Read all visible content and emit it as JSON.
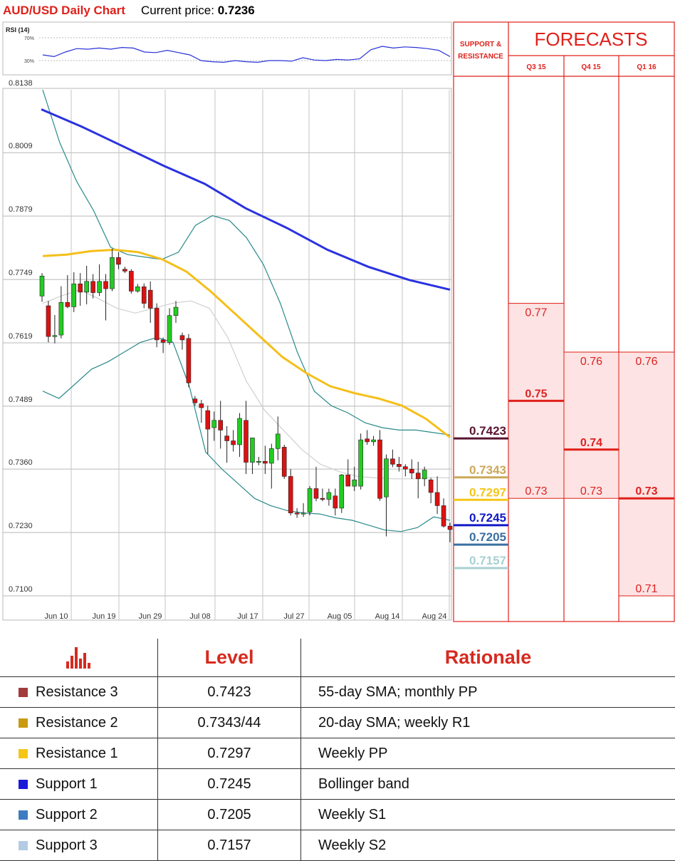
{
  "header": {
    "title": "AUD/USD Daily Chart",
    "price_label": "Current price:",
    "price_value": "0.7236"
  },
  "rsi": {
    "label": "RSI (14)",
    "level_high": "70%",
    "level_low": "30%"
  },
  "right_panel": {
    "sr_title_line1": "SUPPORT &",
    "sr_title_line2": "RESISTANCE",
    "forecasts_title": "FORECASTS",
    "quarters": [
      "Q3 15",
      "Q4 15",
      "Q1 16"
    ]
  },
  "colors": {
    "accent_red": "#e0201a",
    "bull": "#22cc22",
    "bear": "#dd1111",
    "sma200": "#2a32e0",
    "sma55": "#f5bf1a",
    "bollinger": "#2a8a8a",
    "sma20": "#d0d0d0",
    "forecast_fill": "#fde3e3",
    "forecast_line": "#e0201a"
  },
  "chart_data": {
    "type": "candlestick",
    "title": "AUD/USD Daily Chart",
    "ylim": [
      0.71,
      0.8138
    ],
    "y_ticks": [
      "0.8138",
      "0.8009",
      "0.7879",
      "0.7749",
      "0.7619",
      "0.7489",
      "0.7360",
      "0.7230",
      "0.7100"
    ],
    "x_ticks": [
      "Jun 10",
      "Jun 19",
      "Jun 29",
      "Jul 08",
      "Jul 17",
      "Jul 27",
      "Aug 05",
      "Aug 14",
      "Aug 24"
    ],
    "candles": [
      [
        0.7715,
        0.7762,
        0.7703,
        0.7756
      ],
      [
        0.7695,
        0.7705,
        0.762,
        0.7632
      ],
      [
        0.7632,
        0.7676,
        0.7618,
        0.7634
      ],
      [
        0.7635,
        0.7735,
        0.7628,
        0.7702
      ],
      [
        0.7702,
        0.7758,
        0.769,
        0.7693
      ],
      [
        0.7693,
        0.7764,
        0.7682,
        0.774
      ],
      [
        0.774,
        0.7762,
        0.7695,
        0.7723
      ],
      [
        0.7723,
        0.7777,
        0.7698,
        0.7745
      ],
      [
        0.7745,
        0.776,
        0.771,
        0.7722
      ],
      [
        0.7722,
        0.778,
        0.7715,
        0.7745
      ],
      [
        0.7745,
        0.776,
        0.7665,
        0.773
      ],
      [
        0.773,
        0.7812,
        0.7725,
        0.7794
      ],
      [
        0.7794,
        0.7805,
        0.777,
        0.778
      ],
      [
        0.777,
        0.7775,
        0.7762,
        0.7766
      ],
      [
        0.7766,
        0.777,
        0.772,
        0.7725
      ],
      [
        0.7725,
        0.774,
        0.7722,
        0.7734
      ],
      [
        0.7734,
        0.7741,
        0.769,
        0.77
      ],
      [
        0.7727,
        0.7745,
        0.766,
        0.769
      ],
      [
        0.769,
        0.77,
        0.761,
        0.7625
      ],
      [
        0.7625,
        0.763,
        0.7598,
        0.762
      ],
      [
        0.762,
        0.769,
        0.7615,
        0.7675
      ],
      [
        0.7675,
        0.7705,
        0.766,
        0.7692
      ],
      [
        0.7634,
        0.764,
        0.7605,
        0.7625
      ],
      [
        0.7628,
        0.7637,
        0.7528,
        0.7537
      ],
      [
        0.7504,
        0.751,
        0.749,
        0.7496
      ],
      [
        0.7494,
        0.7502,
        0.7455,
        0.7486
      ],
      [
        0.748,
        0.749,
        0.7391,
        0.7442
      ],
      [
        0.7445,
        0.7478,
        0.7418,
        0.746
      ],
      [
        0.746,
        0.75,
        0.7402,
        0.744
      ],
      [
        0.7428,
        0.7448,
        0.7373,
        0.7418
      ],
      [
        0.7418,
        0.744,
        0.7396,
        0.741
      ],
      [
        0.741,
        0.7475,
        0.7385,
        0.7464
      ],
      [
        0.746,
        0.75,
        0.735,
        0.7374
      ],
      [
        0.7374,
        0.742,
        0.735,
        0.7424
      ],
      [
        0.7375,
        0.7385,
        0.7368,
        0.7376
      ],
      [
        0.7376,
        0.7408,
        0.735,
        0.7372
      ],
      [
        0.7372,
        0.7412,
        0.732,
        0.7402
      ],
      [
        0.7402,
        0.7468,
        0.7378,
        0.7432
      ],
      [
        0.7405,
        0.741,
        0.734,
        0.7345
      ],
      [
        0.7345,
        0.736,
        0.7265,
        0.727
      ],
      [
        0.727,
        0.728,
        0.726,
        0.7268
      ],
      [
        0.7268,
        0.729,
        0.7262,
        0.727
      ],
      [
        0.7272,
        0.7325,
        0.7265,
        0.732
      ],
      [
        0.732,
        0.7365,
        0.7294,
        0.73
      ],
      [
        0.73,
        0.732,
        0.7294,
        0.7298
      ],
      [
        0.7298,
        0.732,
        0.7285,
        0.7312
      ],
      [
        0.7305,
        0.732,
        0.7265,
        0.728
      ],
      [
        0.728,
        0.735,
        0.727,
        0.7348
      ],
      [
        0.7348,
        0.738,
        0.7325,
        0.7325
      ],
      [
        0.7325,
        0.7365,
        0.7315,
        0.7338
      ],
      [
        0.7325,
        0.7433,
        0.7318,
        0.742
      ],
      [
        0.7422,
        0.744,
        0.741,
        0.7416
      ],
      [
        0.7416,
        0.7428,
        0.7408,
        0.742
      ],
      [
        0.742,
        0.744,
        0.7295,
        0.73
      ],
      [
        0.7303,
        0.739,
        0.7222,
        0.7381
      ],
      [
        0.7381,
        0.74,
        0.7364,
        0.737
      ],
      [
        0.737,
        0.7385,
        0.7355,
        0.7365
      ],
      [
        0.7365,
        0.737,
        0.7345,
        0.736
      ],
      [
        0.736,
        0.738,
        0.734,
        0.7352
      ],
      [
        0.7352,
        0.7375,
        0.73,
        0.734
      ],
      [
        0.734,
        0.7365,
        0.7325,
        0.7358
      ],
      [
        0.7338,
        0.7342,
        0.729,
        0.7312
      ],
      [
        0.7312,
        0.7345,
        0.7268,
        0.7285
      ],
      [
        0.7285,
        0.73,
        0.724,
        0.7243
      ],
      [
        0.7243,
        0.725,
        0.721,
        0.7236
      ]
    ],
    "sma_200": [
      0.8098,
      0.8062,
      0.8022,
      0.7982,
      0.7945,
      0.7895,
      0.7855,
      0.781,
      0.7775,
      0.7748,
      0.7728
    ],
    "sma_55": [
      0.7797,
      0.78,
      0.7807,
      0.781,
      0.7805,
      0.779,
      0.7765,
      0.7725,
      0.768,
      0.7635,
      0.759,
      0.7557,
      0.753,
      0.7516,
      0.7505,
      0.749,
      0.7463,
      0.7425
    ],
    "bollinger_upper": [
      0.8138,
      0.803,
      0.795,
      0.789,
      0.7815,
      0.78,
      0.7795,
      0.779,
      0.7805,
      0.786,
      0.788,
      0.787,
      0.7835,
      0.778,
      0.77,
      0.76,
      0.752,
      0.749,
      0.7475,
      0.7455,
      0.7445,
      0.744,
      0.744,
      0.7435,
      0.743
    ],
    "bollinger_lower": [
      0.752,
      0.7505,
      0.7535,
      0.7565,
      0.758,
      0.76,
      0.762,
      0.763,
      0.762,
      0.753,
      0.7395,
      0.736,
      0.733,
      0.73,
      0.7285,
      0.7275,
      0.727,
      0.7268,
      0.726,
      0.7255,
      0.7245,
      0.7235,
      0.7232,
      0.724,
      0.7262,
      0.7255
    ],
    "sma_20": [
      0.77,
      0.7715,
      0.7728,
      0.771,
      0.769,
      0.768,
      0.769,
      0.77,
      0.7705,
      0.769,
      0.763,
      0.754,
      0.748,
      0.744,
      0.74,
      0.737,
      0.7355,
      0.7345,
      0.7342,
      0.734,
      0.734,
      0.7343,
      0.7342
    ],
    "rsi": [
      40,
      37,
      45,
      51,
      50,
      52,
      50,
      53,
      52,
      45,
      44,
      48,
      44,
      40,
      30,
      28,
      27,
      30,
      28,
      27,
      30,
      30,
      29,
      35,
      31,
      30,
      32,
      31,
      33,
      49,
      55,
      52,
      54,
      53,
      51,
      48,
      37
    ],
    "levels": [
      {
        "name": "Resistance 3",
        "value": "0.7423",
        "color": "#5a1430"
      },
      {
        "name": "Resistance 2",
        "value": "0.7343",
        "color": "#cba85a"
      },
      {
        "name": "Resistance 1",
        "value": "0.7297",
        "color": "#f5c518"
      },
      {
        "name": "Support 1",
        "value": "0.7245",
        "color": "#1018c8"
      },
      {
        "name": "Support 2",
        "value": "0.7205",
        "color": "#3a6fa0"
      },
      {
        "name": "Support 3",
        "value": "0.7157",
        "color": "#a8d0d0"
      }
    ],
    "forecasts": [
      {
        "quarter": "Q3 15",
        "high": "0.77",
        "mid": "0.75",
        "low": "0.73"
      },
      {
        "quarter": "Q4 15",
        "high": "0.76",
        "mid": "0.74",
        "low": "0.73"
      },
      {
        "quarter": "Q1 16",
        "high": "0.76",
        "mid": "0.73",
        "low": "0.71"
      }
    ]
  },
  "table": {
    "headers": [
      "Level",
      "Rationale"
    ],
    "rows": [
      {
        "name": "Resistance 3",
        "level": "0.7423",
        "rationale": "55-day SMA; monthly PP",
        "swatch": "#a23b3b"
      },
      {
        "name": "Resistance 2",
        "level": "0.7343/44",
        "rationale": "20-day SMA; weekly R1",
        "swatch": "#c99a12"
      },
      {
        "name": "Resistance 1",
        "level": "0.7297",
        "rationale": "Weekly PP",
        "swatch": "#f5c518"
      },
      {
        "name": "Support 1",
        "level": "0.7245",
        "rationale": "Bollinger band",
        "swatch": "#1a1ad8"
      },
      {
        "name": "Support 2",
        "level": "0.7205",
        "rationale": "Weekly S1",
        "swatch": "#3d7cc0"
      },
      {
        "name": "Support 3",
        "level": "0.7157",
        "rationale": "Weekly S2",
        "swatch": "#b3cbe3"
      }
    ]
  }
}
